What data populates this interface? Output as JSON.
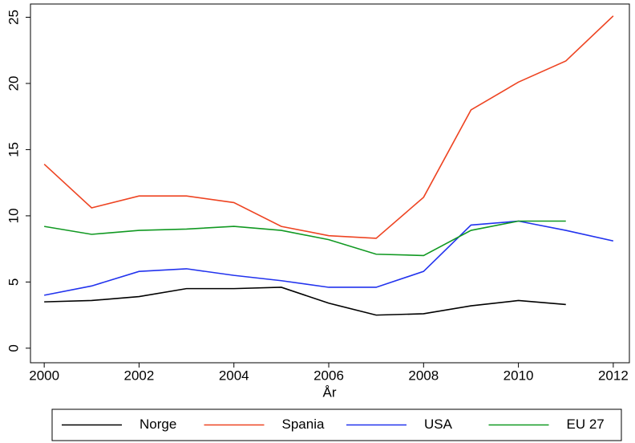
{
  "chart_data": {
    "type": "line",
    "x_label": "År",
    "x": [
      2000,
      2001,
      2002,
      2003,
      2004,
      2005,
      2006,
      2007,
      2008,
      2009,
      2010,
      2011,
      2012
    ],
    "series": [
      {
        "name": "Norge",
        "color": "#000000",
        "values": [
          3.5,
          3.6,
          3.9,
          4.5,
          4.5,
          4.6,
          3.4,
          2.5,
          2.6,
          3.2,
          3.6,
          3.3,
          null
        ]
      },
      {
        "name": "Spania",
        "color": "#ee4422",
        "values": [
          13.9,
          10.6,
          11.5,
          11.5,
          11.0,
          9.2,
          8.5,
          8.3,
          11.4,
          18.0,
          20.1,
          21.7,
          25.1
        ]
      },
      {
        "name": "USA",
        "color": "#2233ee",
        "values": [
          4.0,
          4.7,
          5.8,
          6.0,
          5.5,
          5.1,
          4.6,
          4.6,
          5.8,
          9.3,
          9.6,
          8.9,
          8.1
        ]
      },
      {
        "name": "EU 27",
        "color": "#119922",
        "values": [
          9.2,
          8.6,
          8.9,
          9.0,
          9.2,
          8.9,
          8.2,
          7.1,
          7.0,
          8.9,
          9.6,
          9.6,
          null
        ]
      }
    ],
    "xlim": [
      1999.71,
      2012.34
    ],
    "ylim": [
      -1.1,
      26
    ],
    "xticks": [
      2000,
      2002,
      2004,
      2006,
      2008,
      2010,
      2012
    ],
    "yticks": [
      0,
      5,
      10,
      15,
      20,
      25
    ],
    "legend": "bottom"
  }
}
